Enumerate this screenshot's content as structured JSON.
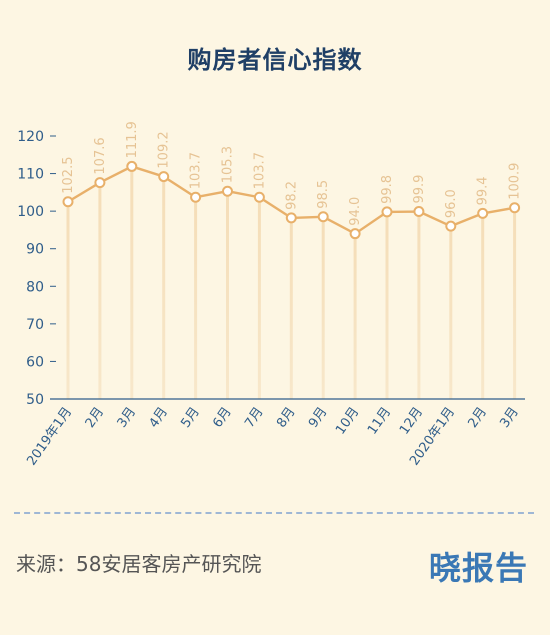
{
  "title": "购房者信心指数",
  "source": "来源：58安居客房产研究院",
  "brand": "晓报告",
  "colors": {
    "background": "#fdf6e3",
    "line": "#e8b06a",
    "label": "#e6c394",
    "axis": "#2f5d8a",
    "title": "#1f3f66",
    "brand": "#3a78b5"
  },
  "chart_data": {
    "type": "line",
    "title": "购房者信心指数",
    "xlabel": "",
    "ylabel": "",
    "ylim": [
      50,
      120
    ],
    "yticks": [
      50,
      60,
      70,
      80,
      90,
      100,
      110,
      120
    ],
    "categories": [
      "2019年1月",
      "2月",
      "3月",
      "4月",
      "5月",
      "6月",
      "7月",
      "8月",
      "9月",
      "10月",
      "11月",
      "12月",
      "2020年1月",
      "2月",
      "3月"
    ],
    "values": [
      102.5,
      107.6,
      111.9,
      109.2,
      103.7,
      105.3,
      103.7,
      98.2,
      98.5,
      94.0,
      99.8,
      99.9,
      96.0,
      99.4,
      100.9
    ],
    "value_labels": [
      "102.5",
      "107.6",
      "111.9",
      "109.2",
      "103.7",
      "105.3",
      "103.7",
      "98.2",
      "98.5",
      "94.0",
      "99.8",
      "99.9",
      "96.0",
      "99.4",
      "100.9"
    ],
    "grid": false,
    "drop_lines": true
  }
}
